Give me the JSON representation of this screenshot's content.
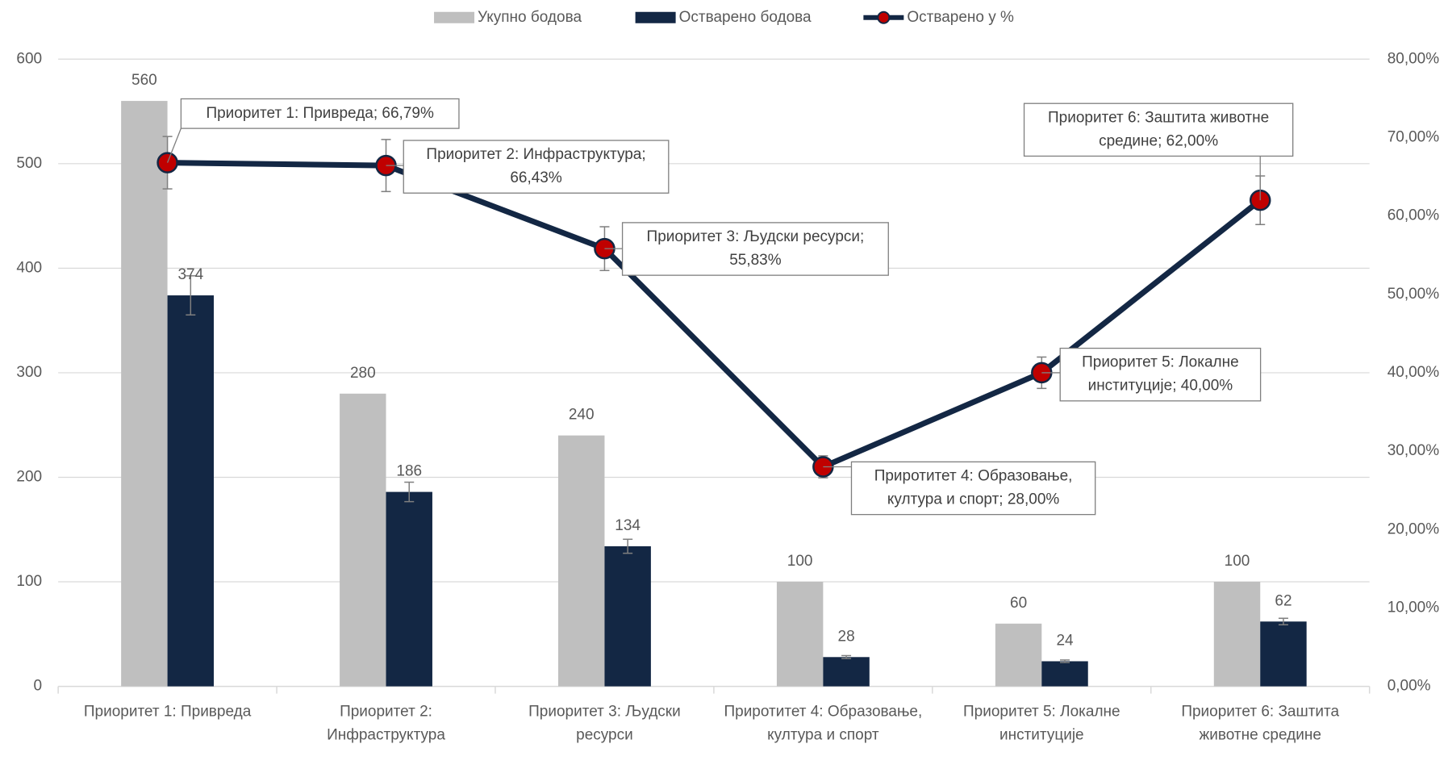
{
  "chart_data": {
    "type": "bar_line",
    "categories": [
      "Приоритет 1: Привреда",
      "Приоритет 2: Инфраструктура",
      "Приоритет 3: Људски ресурси",
      "Приротитет 4: Образовање, култура и спорт",
      "Приоритет 5: Локалне институције",
      "Приоритет 6: Заштита животне средине"
    ],
    "series": [
      {
        "name": "Укупно бодова",
        "type": "bar",
        "color": "#bfbfbf",
        "values": [
          560,
          280,
          240,
          100,
          60,
          100
        ]
      },
      {
        "name": "Остварено бодова",
        "type": "bar",
        "color": "#132744",
        "values": [
          374,
          186,
          134,
          28,
          24,
          62
        ],
        "errors": [
          18.7,
          9.3,
          6.7,
          1.4,
          1.2,
          3.1
        ]
      },
      {
        "name": "Остварено у %",
        "type": "line",
        "axis": "y2",
        "color": "#132744",
        "marker_color": "#c00000",
        "values": [
          66.79,
          66.43,
          55.83,
          28,
          40,
          62
        ],
        "errors": [
          3.34,
          3.32,
          2.79,
          1.4,
          2,
          3.1
        ],
        "value_labels": [
          "Приоритет 1: Привреда; 66,79%",
          "Приоритет 2: Инфраструктура; 66,43%",
          "Приоритет 3: Људски ресурси; 55,83%",
          "Приротитет 4: Образовање, култура и спорт; 28,00%",
          "Приоритет 5: Локалне институције; 40,00%",
          "Приоритет 6: Заштита животне средине; 62,00%"
        ]
      }
    ],
    "ylim": [
      0,
      600
    ],
    "yticks": [
      0,
      100,
      200,
      300,
      400,
      500,
      600
    ],
    "y2lim": [
      0,
      80
    ],
    "y2ticks": [
      {
        "value": 0,
        "label": "0,00%"
      },
      {
        "value": 10,
        "label": "10,00%"
      },
      {
        "value": 20,
        "label": "20,00%"
      },
      {
        "value": 30,
        "label": "30,00%"
      },
      {
        "value": 40,
        "label": "40,00%"
      },
      {
        "value": 50,
        "label": "50,00%"
      },
      {
        "value": 60,
        "label": "60,00%"
      },
      {
        "value": 70,
        "label": "70,00%"
      },
      {
        "value": 80,
        "label": "80,00%"
      }
    ],
    "grid": true,
    "legend": "top"
  }
}
